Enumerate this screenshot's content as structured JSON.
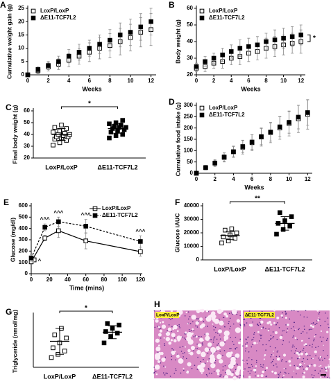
{
  "chart_data": [
    {
      "type": "line",
      "label": "A",
      "xlabel": "Weeks",
      "ylabel": "Cumulative weight gain (g)",
      "x": [
        0,
        1,
        2,
        3,
        4,
        5,
        6,
        7,
        8,
        9,
        10,
        11,
        12
      ],
      "xlim": [
        0,
        12.5
      ],
      "xticks": [
        0,
        2,
        4,
        6,
        8,
        10,
        12
      ],
      "ylim": [
        0,
        25
      ],
      "yticks": [
        0,
        5,
        10,
        15,
        20,
        25
      ],
      "legend": "upper left",
      "series": [
        {
          "name": "LoxP/LoxP",
          "marker": "open",
          "color": "#000000",
          "values": [
            0,
            1.5,
            3,
            4,
            5.5,
            7,
            8.5,
            10,
            11,
            12.5,
            14,
            16,
            17
          ],
          "errors": [
            0.5,
            1,
            1.5,
            2,
            2.5,
            3,
            3.5,
            4,
            4.5,
            5,
            5,
            5.5,
            6
          ]
        },
        {
          "name": "ΔE11-TCF7L2",
          "marker": "filled",
          "color": "#000000",
          "values": [
            0,
            2,
            3.5,
            5,
            7,
            8.5,
            10,
            11.5,
            13,
            15,
            16,
            18,
            20
          ],
          "errors": [
            0.5,
            1,
            1.5,
            2,
            2.5,
            3,
            3,
            3.5,
            4,
            4.5,
            5,
            5,
            5
          ]
        }
      ]
    },
    {
      "type": "line",
      "label": "B",
      "xlabel": "Weeks",
      "ylabel": "Body weight (g)",
      "x": [
        0,
        1,
        2,
        3,
        4,
        5,
        6,
        7,
        8,
        9,
        10,
        11,
        12
      ],
      "xlim": [
        0,
        12.5
      ],
      "xticks": [
        0,
        2,
        4,
        6,
        8,
        10,
        12
      ],
      "ylim": [
        20,
        60
      ],
      "yticks": [
        20,
        30,
        40,
        50,
        60
      ],
      "legend": "upper left",
      "bracket_annotation": "*",
      "series": [
        {
          "name": "LoxP/LoxP",
          "marker": "open",
          "color": "#000000",
          "values": [
            24,
            25,
            27,
            28,
            30,
            31,
            33,
            34,
            36,
            37,
            38,
            39,
            40
          ],
          "errors": [
            2,
            3,
            3,
            4,
            4,
            5,
            5,
            5,
            6,
            6,
            6,
            6,
            7
          ]
        },
        {
          "name": "ΔE11-TCF7L2",
          "marker": "filled",
          "color": "#000000",
          "values": [
            25,
            28,
            30,
            32,
            34,
            36,
            37,
            38,
            40,
            41,
            42,
            43,
            44
          ],
          "errors": [
            2,
            3,
            3,
            4,
            4,
            5,
            5,
            5,
            5,
            6,
            6,
            6,
            6
          ]
        }
      ]
    },
    {
      "type": "dot",
      "label": "C",
      "ylabel": "Final body weight (g)",
      "categories": [
        "LoxP/LoxP",
        "ΔE11-TCF7L2"
      ],
      "markers": [
        "open",
        "filled"
      ],
      "ylim": [
        20,
        60
      ],
      "yticks": [
        20,
        30,
        40,
        50,
        60
      ],
      "significance": "*",
      "points": [
        [
          31,
          33,
          35,
          36,
          37,
          38,
          38,
          39,
          40,
          40,
          41,
          42,
          43,
          45,
          46,
          48
        ],
        [
          37,
          39,
          40,
          42,
          43,
          44,
          45,
          46,
          46,
          47,
          48,
          49,
          50,
          52
        ]
      ],
      "means": [
        40,
        45
      ],
      "sds": [
        5,
        4
      ]
    },
    {
      "type": "line",
      "label": "D",
      "xlabel": "Weeks",
      "ylabel": "Cumulative food intake (g)",
      "x": [
        0,
        1,
        2,
        3,
        4,
        5,
        6,
        7,
        8,
        9,
        10,
        11,
        12
      ],
      "xlim": [
        0,
        12.5
      ],
      "xticks": [
        0,
        2,
        4,
        6,
        8,
        10,
        12
      ],
      "ylim": [
        0,
        300
      ],
      "yticks": [
        0,
        50,
        100,
        150,
        200,
        250,
        300
      ],
      "legend": "upper left",
      "series": [
        {
          "name": "LoxP/LoxP",
          "marker": "open",
          "color": "#000000",
          "values": [
            0,
            25,
            45,
            70,
            95,
            115,
            135,
            160,
            180,
            200,
            220,
            240,
            260
          ],
          "errors": [
            5,
            10,
            15,
            20,
            25,
            30,
            35,
            40,
            45,
            50,
            55,
            60,
            65
          ]
        },
        {
          "name": "ΔE11-TCF7L2",
          "marker": "filled",
          "color": "#000000",
          "values": [
            0,
            25,
            45,
            72,
            95,
            118,
            138,
            162,
            182,
            205,
            225,
            248,
            268
          ],
          "errors": [
            5,
            8,
            12,
            18,
            22,
            28,
            32,
            36,
            40,
            44,
            48,
            52,
            56
          ]
        }
      ]
    },
    {
      "type": "line",
      "label": "E",
      "xlabel": "Time (mins)",
      "ylabel": "Glucose (mg/dl)",
      "x": [
        0,
        15,
        30,
        60,
        120
      ],
      "xlim": [
        0,
        122
      ],
      "xticks": [
        0,
        20,
        40,
        60,
        80,
        100,
        120
      ],
      "ylim": [
        0,
        600
      ],
      "yticks": [
        0,
        100,
        200,
        300,
        400,
        500,
        600
      ],
      "legend": "upper right",
      "point_annotations": [
        "^",
        "^^^",
        "^^^",
        "^^^",
        "^^^"
      ],
      "series": [
        {
          "name": "LoxP/LoxP",
          "marker": "open",
          "line": "solid",
          "color": "#000000",
          "values": [
            105,
            315,
            380,
            290,
            195
          ],
          "errors": [
            20,
            25,
            60,
            70,
            40
          ]
        },
        {
          "name": "ΔE11-TCF7L2",
          "marker": "filled",
          "line": "dashed",
          "color": "#000000",
          "values": [
            140,
            410,
            460,
            420,
            285
          ],
          "errors": [
            30,
            30,
            40,
            60,
            50
          ]
        }
      ]
    },
    {
      "type": "dot",
      "label": "F",
      "ylabel": "Glucose iAUC",
      "categories": [
        "LoxP/LoxP",
        "ΔE11-TCF7L2"
      ],
      "markers": [
        "open",
        "filled"
      ],
      "ylim": [
        0,
        40000
      ],
      "yticks": [
        0,
        10000,
        20000,
        30000,
        40000
      ],
      "significance": "**",
      "points": [
        [
          12500,
          14000,
          16000,
          17000,
          18500,
          20000,
          22000,
          23000
        ],
        [
          19000,
          22500,
          25000,
          27000,
          29000,
          32000,
          35000
        ]
      ],
      "means": [
        18000,
        27000
      ],
      "sds": [
        3000,
        5000
      ]
    },
    {
      "type": "dot",
      "label": "G",
      "ylabel": "Triglyceride (nmol/mg)",
      "categories": [
        "LoxP/LoxP",
        "ΔE11-TCF7L2"
      ],
      "markers": [
        "open",
        "filled"
      ],
      "ylim": [
        0,
        160
      ],
      "significance": "*",
      "points": [
        [
          30,
          40,
          50,
          60,
          75,
          90,
          100,
          120
        ],
        [
          75,
          95,
          105,
          110,
          120,
          130,
          135
        ]
      ],
      "means": [
        80,
        108
      ],
      "sds": [
        40,
        20
      ]
    }
  ],
  "figure_h": {
    "label": "H",
    "captions": [
      "LoxP/LoxP",
      "ΔE11-TCF7L2"
    ]
  }
}
